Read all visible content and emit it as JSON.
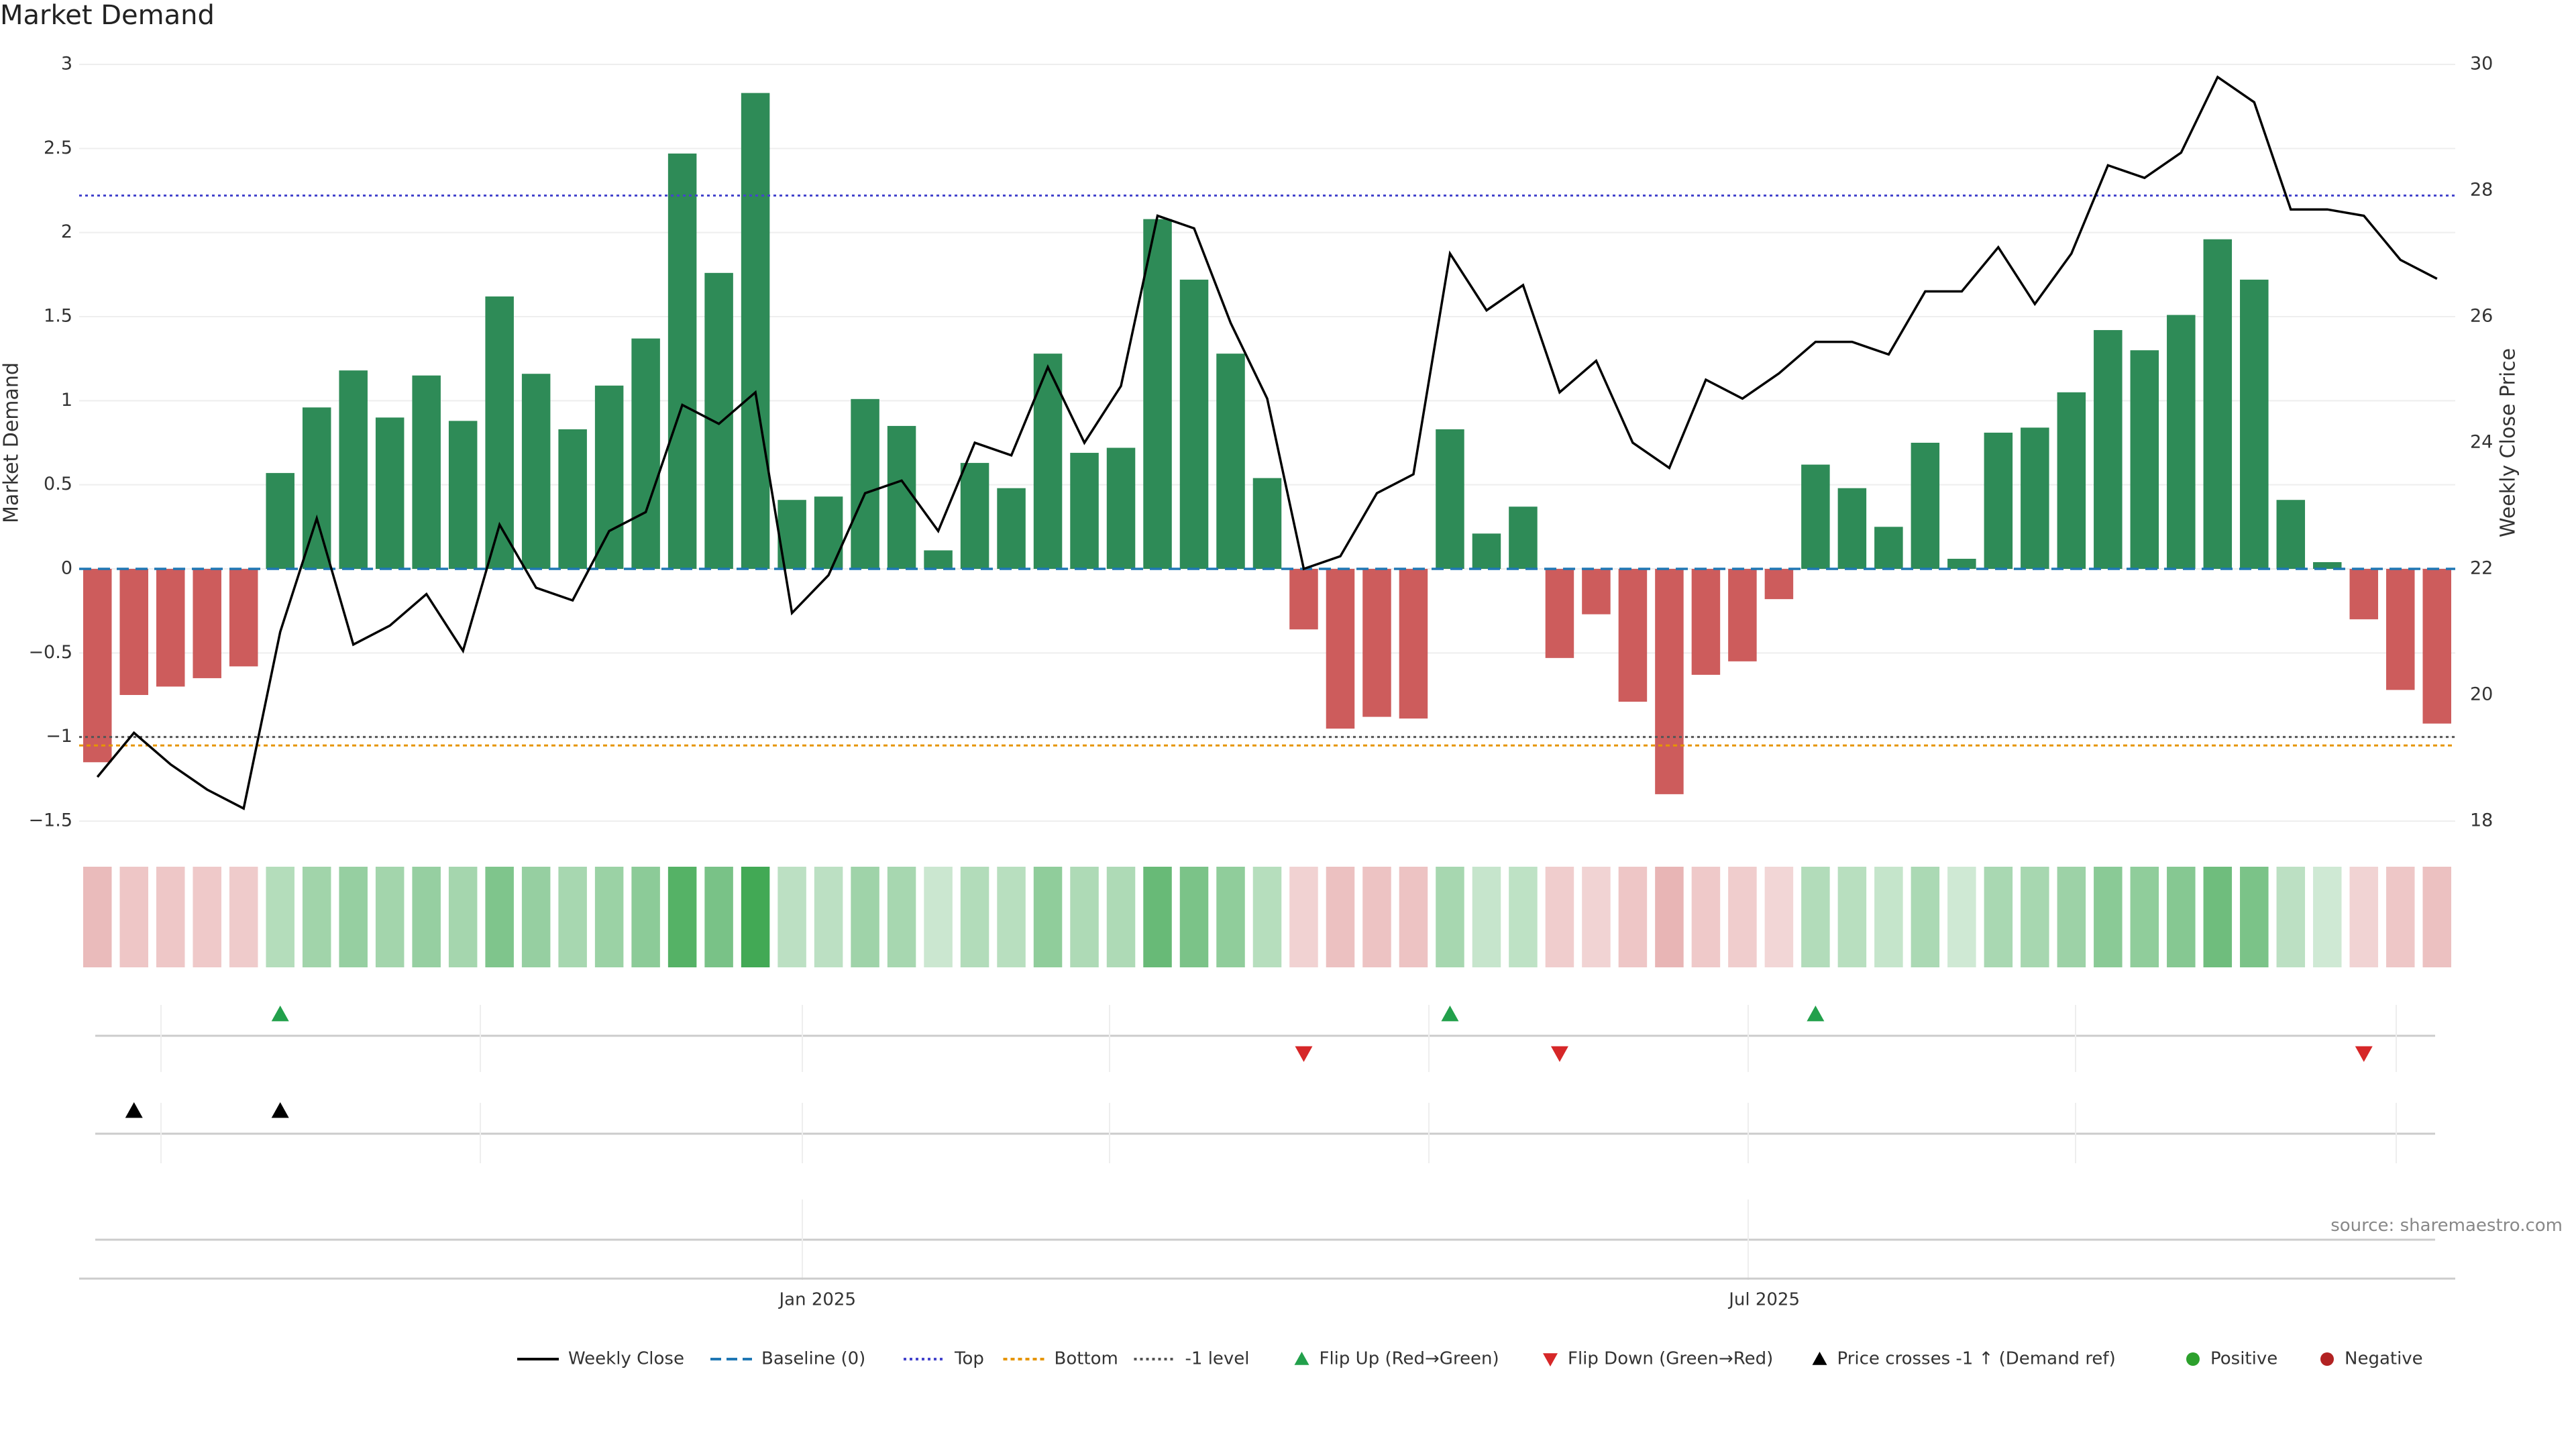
{
  "title": "Market Demand",
  "source": "source: sharemaestro.com",
  "colors": {
    "positive_bar": "#2e8b57",
    "negative_bar": "#cd5c5c",
    "price_line": "#000000",
    "baseline": "#1f77b4",
    "top_line": "#4444cc",
    "bottom_line": "#e69500",
    "minus_one_line": "#555555",
    "flip_up": "#22a04b",
    "flip_down": "#d62728",
    "price_cross": "#000000",
    "positive_dot": "#2ca02c",
    "negative_dot": "#b22222"
  },
  "chart_data": {
    "type": "bar",
    "title": "Market Demand",
    "ylabel": "Market Demand",
    "y2label": "Weekly Close Price",
    "ylim": [
      -1.5,
      3
    ],
    "y2lim": [
      18,
      30
    ],
    "yticks": [
      "3",
      "2.5",
      "2",
      "1.5",
      "1",
      "0.5",
      "0",
      "−0.5",
      "−1",
      "−1.5"
    ],
    "yticks_values": [
      3,
      2.5,
      2,
      1.5,
      1,
      0.5,
      0,
      -0.5,
      -1,
      -1.5
    ],
    "y2ticks": [
      "30",
      "28",
      "26",
      "24",
      "22",
      "20",
      "18"
    ],
    "y2ticks_values": [
      30,
      28,
      26,
      24,
      22,
      20,
      18
    ],
    "xtick_labels": [
      {
        "label": "Jan 2025",
        "week": 19.7
      },
      {
        "label": "Jul 2025",
        "week": 45.6
      }
    ],
    "reference_lines": {
      "top": 2.22,
      "bottom": -1.05,
      "minus_one": -1.0,
      "baseline": 0
    },
    "demand": [
      -1.15,
      -0.75,
      -0.7,
      -0.65,
      -0.58,
      0.57,
      0.96,
      1.18,
      0.9,
      1.15,
      0.88,
      1.62,
      1.16,
      0.83,
      1.09,
      1.37,
      2.47,
      1.76,
      2.83,
      0.41,
      0.43,
      1.01,
      0.85,
      0.11,
      0.63,
      0.48,
      1.28,
      0.69,
      0.72,
      2.08,
      1.72,
      1.28,
      0.54,
      -0.36,
      -0.95,
      -0.88,
      -0.89,
      0.83,
      0.21,
      0.37,
      -0.53,
      -0.27,
      -0.79,
      -1.34,
      -0.63,
      -0.55,
      -0.18,
      0.62,
      0.48,
      0.25,
      0.75,
      0.06,
      0.81,
      0.84,
      1.05,
      1.42,
      1.3,
      1.51,
      1.96,
      1.72,
      0.41,
      0.04,
      -0.3,
      -0.72,
      -0.92
    ],
    "weekly_close": [
      18.7,
      19.4,
      18.9,
      18.5,
      18.2,
      21.0,
      22.8,
      20.8,
      21.1,
      21.6,
      20.7,
      22.7,
      21.7,
      21.5,
      22.6,
      22.9,
      24.6,
      24.3,
      24.8,
      21.3,
      21.9,
      23.2,
      23.4,
      22.6,
      24.0,
      23.8,
      25.2,
      24.0,
      24.9,
      27.6,
      27.4,
      25.9,
      24.7,
      22.0,
      22.2,
      23.2,
      23.5,
      27.0,
      26.1,
      26.5,
      24.8,
      25.3,
      24.0,
      23.6,
      25.0,
      24.7,
      25.1,
      25.6,
      25.6,
      25.4,
      26.4,
      26.4,
      27.1,
      26.2,
      27.0,
      28.4,
      28.2,
      28.6,
      29.8,
      29.4,
      27.7,
      27.7,
      27.6,
      26.9,
      26.6
    ],
    "flip_up_weeks": [
      5,
      37,
      47
    ],
    "flip_down_weeks": [
      33,
      40,
      62
    ],
    "price_cross_weeks": [
      1,
      5
    ],
    "series": [
      {
        "name": "Weekly Close"
      },
      {
        "name": "Market Demand"
      }
    ],
    "legend": [
      "Weekly Close",
      "Baseline (0)",
      "Top",
      "Bottom",
      "-1 level",
      "Flip Up (Red→Green)",
      "Flip Down (Green→Red)",
      "Price crosses -1 ↑ (Demand ref)",
      "Positive",
      "Negative"
    ],
    "legend_position": "bottom-center"
  }
}
